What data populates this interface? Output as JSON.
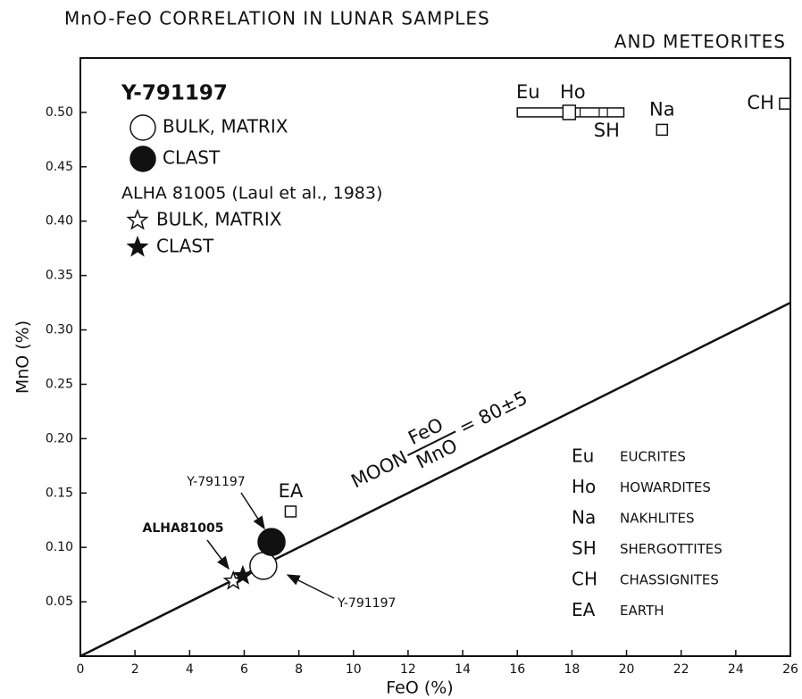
{
  "chart_data": {
    "type": "scatter",
    "title": [
      "MnO-FeO CORRELATION IN LUNAR SAMPLES",
      "AND METEORITES"
    ],
    "xlabel": "FeO (%)",
    "ylabel": "MnO (%)",
    "xlim": [
      0,
      26
    ],
    "ylim": [
      0,
      0.55
    ],
    "xticks": [
      0,
      2,
      4,
      6,
      8,
      10,
      12,
      14,
      16,
      18,
      20,
      22,
      24,
      26
    ],
    "yticks": [
      0.05,
      {
        "value": 0.1,
        "label": "0.10"
      },
      0.15,
      {
        "value": 0.2,
        "label": "0.20"
      },
      0.25,
      {
        "value": 0.3,
        "label": "0.30"
      },
      0.35,
      {
        "value": 0.4,
        "label": "0.40"
      },
      0.45,
      {
        "value": 0.5,
        "label": "0.50"
      }
    ],
    "groups": [
      {
        "name": "Y-791197",
        "series": [
          {
            "name": "BULK, MATRIX",
            "marker": "open-circle",
            "x": [
              6.7
            ],
            "values": [
              0.083
            ]
          },
          {
            "name": "CLAST",
            "marker": "filled-circle",
            "x": [
              7.0
            ],
            "values": [
              0.105
            ]
          }
        ]
      },
      {
        "name": "ALHA 81005 (Laul et al., 1983)",
        "series": [
          {
            "name": "BULK, MATRIX",
            "marker": "open-star",
            "x": [
              5.6
            ],
            "values": [
              0.069
            ]
          },
          {
            "name": "CLAST",
            "marker": "filled-star",
            "x": [
              5.95
            ],
            "values": [
              0.074
            ]
          }
        ]
      }
    ],
    "references": [
      {
        "name": "EA",
        "x": [
          7.7
        ],
        "values": [
          0.133
        ]
      },
      {
        "name": "Na",
        "x": [
          21.3
        ],
        "values": [
          0.484
        ]
      },
      {
        "name": "CH",
        "x": [
          25.8
        ],
        "values": [
          0.508
        ]
      }
    ],
    "achondrite_range": {
      "labels": [
        "Eu",
        "Ho",
        "SH"
      ],
      "x": [
        16.0,
        19.9
      ],
      "values": [
        0.5,
        0.5
      ],
      "ho_x": 17.9
    },
    "moon_line": {
      "x": [
        0,
        26
      ],
      "values": [
        0,
        0.325
      ]
    },
    "moon_label": {
      "prefix": "MOON",
      "numerator": "FeO",
      "denominator": "MnO",
      "suffix": "= 80±5"
    },
    "annotations": [
      "Y-791197",
      "ALHA81005",
      "Y-791197"
    ],
    "key": [
      {
        "abbr": "Eu",
        "name": "EUCRITES"
      },
      {
        "abbr": "Ho",
        "name": "HOWARDITES"
      },
      {
        "abbr": "Na",
        "name": "NAKHLITES"
      },
      {
        "abbr": "SH",
        "name": "SHERGOTTITES"
      },
      {
        "abbr": "CH",
        "name": "CHASSIGNITES"
      },
      {
        "abbr": "EA",
        "name": "EARTH"
      }
    ]
  }
}
